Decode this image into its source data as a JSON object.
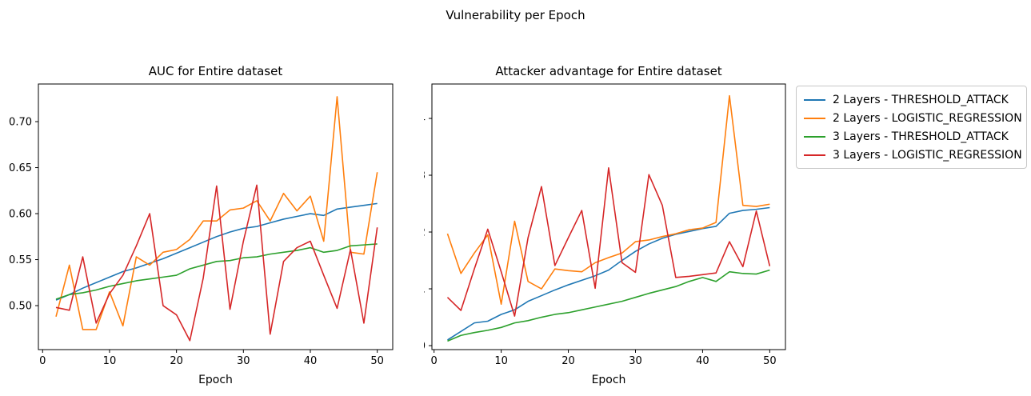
{
  "suptitle": "Vulnerability per Epoch",
  "legend": {
    "items": [
      {
        "label": "2 Layers - THRESHOLD_ATTACK",
        "color": "#1f77b4"
      },
      {
        "label": "2 Layers - LOGISTIC_REGRESSION",
        "color": "#ff7f0e"
      },
      {
        "label": "3 Layers - THRESHOLD_ATTACK",
        "color": "#2ca02c"
      },
      {
        "label": "3 Layers - LOGISTIC_REGRESSION",
        "color": "#d62728"
      }
    ]
  },
  "chart_data": [
    {
      "type": "line",
      "title": "AUC for Entire dataset",
      "xlabel": "Epoch",
      "grid": false,
      "x": [
        2,
        4,
        6,
        8,
        10,
        12,
        14,
        16,
        18,
        20,
        22,
        24,
        26,
        28,
        30,
        32,
        34,
        36,
        38,
        40,
        42,
        44,
        46,
        48,
        50
      ],
      "xlim": [
        -0.63,
        52.31
      ],
      "ylim": [
        0.4522,
        0.7409
      ],
      "xticks": [
        {
          "value": 0,
          "label": "0"
        },
        {
          "value": 10,
          "label": "10"
        },
        {
          "value": 20,
          "label": "20"
        },
        {
          "value": 30,
          "label": "30"
        },
        {
          "value": 40,
          "label": "40"
        },
        {
          "value": 50,
          "label": "50"
        }
      ],
      "yticks": [
        {
          "value": 0.5,
          "label": "0.50"
        },
        {
          "value": 0.55,
          "label": "0.55"
        },
        {
          "value": 0.6,
          "label": "0.60"
        },
        {
          "value": 0.65,
          "label": "0.65"
        },
        {
          "value": 0.7,
          "label": "0.70"
        }
      ],
      "series": [
        {
          "name": "2 Layers - THRESHOLD_ATTACK",
          "color": "#1f77b4",
          "values": [
            0.506,
            0.512,
            0.519,
            0.525,
            0.531,
            0.537,
            0.541,
            0.546,
            0.551,
            0.557,
            0.563,
            0.569,
            0.575,
            0.58,
            0.584,
            0.586,
            0.59,
            0.594,
            0.597,
            0.6,
            0.598,
            0.605,
            0.607,
            0.609,
            0.611
          ]
        },
        {
          "name": "2 Layers - LOGISTIC_REGRESSION",
          "color": "#ff7f0e",
          "values": [
            0.488,
            0.544,
            0.474,
            0.474,
            0.515,
            0.478,
            0.553,
            0.544,
            0.558,
            0.561,
            0.572,
            0.592,
            0.592,
            0.604,
            0.606,
            0.614,
            0.592,
            0.622,
            0.603,
            0.619,
            0.57,
            0.727,
            0.558,
            0.556,
            0.645
          ]
        },
        {
          "name": "3 Layers - THRESHOLD_ATTACK",
          "color": "#2ca02c",
          "values": [
            0.507,
            0.512,
            0.514,
            0.517,
            0.521,
            0.524,
            0.527,
            0.529,
            0.531,
            0.533,
            0.54,
            0.544,
            0.548,
            0.549,
            0.552,
            0.553,
            0.556,
            0.558,
            0.56,
            0.563,
            0.558,
            0.56,
            0.565,
            0.566,
            0.567
          ]
        },
        {
          "name": "3 Layers - LOGISTIC_REGRESSION",
          "color": "#d62728",
          "values": [
            0.498,
            0.495,
            0.553,
            0.481,
            0.513,
            0.533,
            0.565,
            0.6,
            0.5,
            0.49,
            0.462,
            0.53,
            0.63,
            0.496,
            0.57,
            0.631,
            0.469,
            0.548,
            0.563,
            0.57,
            0.533,
            0.497,
            0.561,
            0.481,
            0.585
          ]
        }
      ]
    },
    {
      "type": "line",
      "title": "Attacker advantage for Entire dataset",
      "xlabel": "Epoch",
      "grid": false,
      "x": [
        2,
        4,
        6,
        8,
        10,
        12,
        14,
        16,
        18,
        20,
        22,
        24,
        26,
        28,
        30,
        32,
        34,
        36,
        38,
        40,
        42,
        44,
        46,
        48,
        50
      ],
      "xlim": [
        -0.32,
        52.34
      ],
      "ylim": [
        -0.007,
        0.4606
      ],
      "xticks": [
        {
          "value": 0,
          "label": "0"
        },
        {
          "value": 10,
          "label": "10"
        },
        {
          "value": 20,
          "label": "20"
        },
        {
          "value": 30,
          "label": "30"
        },
        {
          "value": 40,
          "label": "40"
        },
        {
          "value": 50,
          "label": "50"
        }
      ],
      "yticks": [
        {
          "value": 0.0,
          "label": "0.0"
        },
        {
          "value": 0.1,
          "label": "0.1"
        },
        {
          "value": 0.2,
          "label": "0.2"
        },
        {
          "value": 0.3,
          "label": "0.3"
        },
        {
          "value": 0.4,
          "label": "0.4"
        }
      ],
      "series": [
        {
          "name": "2 Layers - THRESHOLD_ATTACK",
          "color": "#1f77b4",
          "values": [
            0.01,
            0.025,
            0.04,
            0.043,
            0.055,
            0.063,
            0.078,
            0.088,
            0.098,
            0.107,
            0.115,
            0.123,
            0.133,
            0.15,
            0.166,
            0.179,
            0.189,
            0.196,
            0.201,
            0.206,
            0.21,
            0.233,
            0.238,
            0.24,
            0.243
          ]
        },
        {
          "name": "2 Layers - LOGISTIC_REGRESSION",
          "color": "#ff7f0e",
          "values": [
            0.197,
            0.127,
            0.163,
            0.195,
            0.073,
            0.219,
            0.113,
            0.1,
            0.135,
            0.132,
            0.13,
            0.146,
            0.155,
            0.163,
            0.183,
            0.186,
            0.192,
            0.197,
            0.204,
            0.207,
            0.217,
            0.44,
            0.247,
            0.245,
            0.249
          ]
        },
        {
          "name": "3 Layers - THRESHOLD_ATTACK",
          "color": "#2ca02c",
          "values": [
            0.008,
            0.018,
            0.023,
            0.027,
            0.032,
            0.04,
            0.044,
            0.05,
            0.055,
            0.058,
            0.063,
            0.068,
            0.073,
            0.078,
            0.085,
            0.092,
            0.098,
            0.104,
            0.113,
            0.12,
            0.113,
            0.13,
            0.127,
            0.126,
            0.133
          ]
        },
        {
          "name": "3 Layers - LOGISTIC_REGRESSION",
          "color": "#d62728",
          "values": [
            0.085,
            0.062,
            0.135,
            0.205,
            0.13,
            0.052,
            0.19,
            0.28,
            0.141,
            0.19,
            0.238,
            0.101,
            0.313,
            0.146,
            0.129,
            0.301,
            0.247,
            0.12,
            0.122,
            0.125,
            0.128,
            0.183,
            0.139,
            0.237,
            0.14
          ]
        }
      ]
    }
  ]
}
